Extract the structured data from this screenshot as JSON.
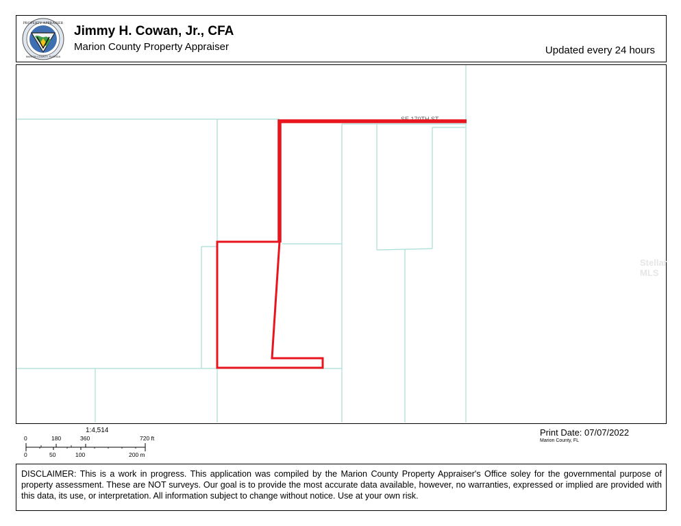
{
  "header": {
    "title": "Jimmy H. Cowan, Jr., CFA",
    "subtitle": "Marion County Property Appraiser",
    "updated": "Updated every 24 hours",
    "logo": {
      "top_text": "PROPERTY APPRAISER",
      "bottom_text": "MARION COUNTY, FLORIDA"
    }
  },
  "map": {
    "street_label": "SE 170TH ST",
    "parcel_line_color": "#a8ddd6",
    "highlight_color": "#e8141e"
  },
  "watermark": "Stellar MLS",
  "scale": {
    "ratio": "1:4,514",
    "feet_labels": [
      "0",
      "180",
      "360",
      "720 ft"
    ],
    "meter_labels": [
      "0",
      "50",
      "100",
      "200 m"
    ]
  },
  "print": {
    "date": "Print Date: 07/07/2022",
    "location": "Marion County, FL"
  },
  "disclaimer": "DISCLAIMER: This is a work in progress. This application was compiled by the Marion County Property Appraiser's Office soley for the governmental purpose of property assessment. These are NOT surveys. Our goal is to provide the most accurate data available, however, no warranties, expressed or implied are provided with this data, its use, or interpretation. All information subject to change without notice. Use at your own risk."
}
